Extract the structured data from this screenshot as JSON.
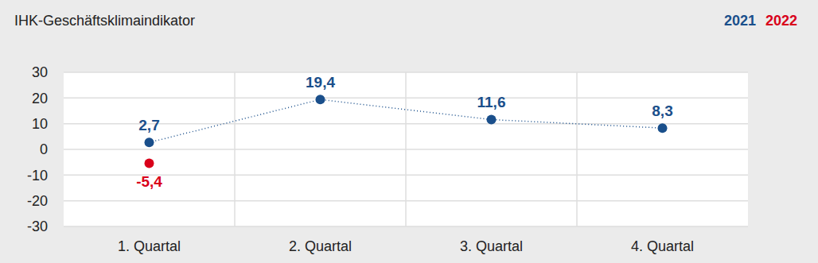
{
  "chart_data": {
    "type": "line",
    "title": "IHK-Geschäftsklimaindikator",
    "categories": [
      "1. Quartal",
      "2. Quartal",
      "3. Quartal",
      "4. Quartal"
    ],
    "series": [
      {
        "name": "2021",
        "color": "#1a4f8b",
        "line_style": "dotted",
        "marker": "circle",
        "values": [
          2.7,
          19.4,
          11.6,
          8.3
        ],
        "value_labels": [
          "2,7",
          "19,4",
          "11,6",
          "8,3"
        ]
      },
      {
        "name": "2022",
        "color": "#d9001a",
        "marker": "circle",
        "values": [
          -5.4,
          null,
          null,
          null
        ],
        "value_labels": [
          "-5,4",
          null,
          null,
          null
        ]
      }
    ],
    "ylim": [
      -30,
      30
    ],
    "yticks": [
      -30,
      -20,
      -10,
      0,
      10,
      20,
      30
    ],
    "grid": true,
    "data_labels": true,
    "legend": "top-right"
  }
}
